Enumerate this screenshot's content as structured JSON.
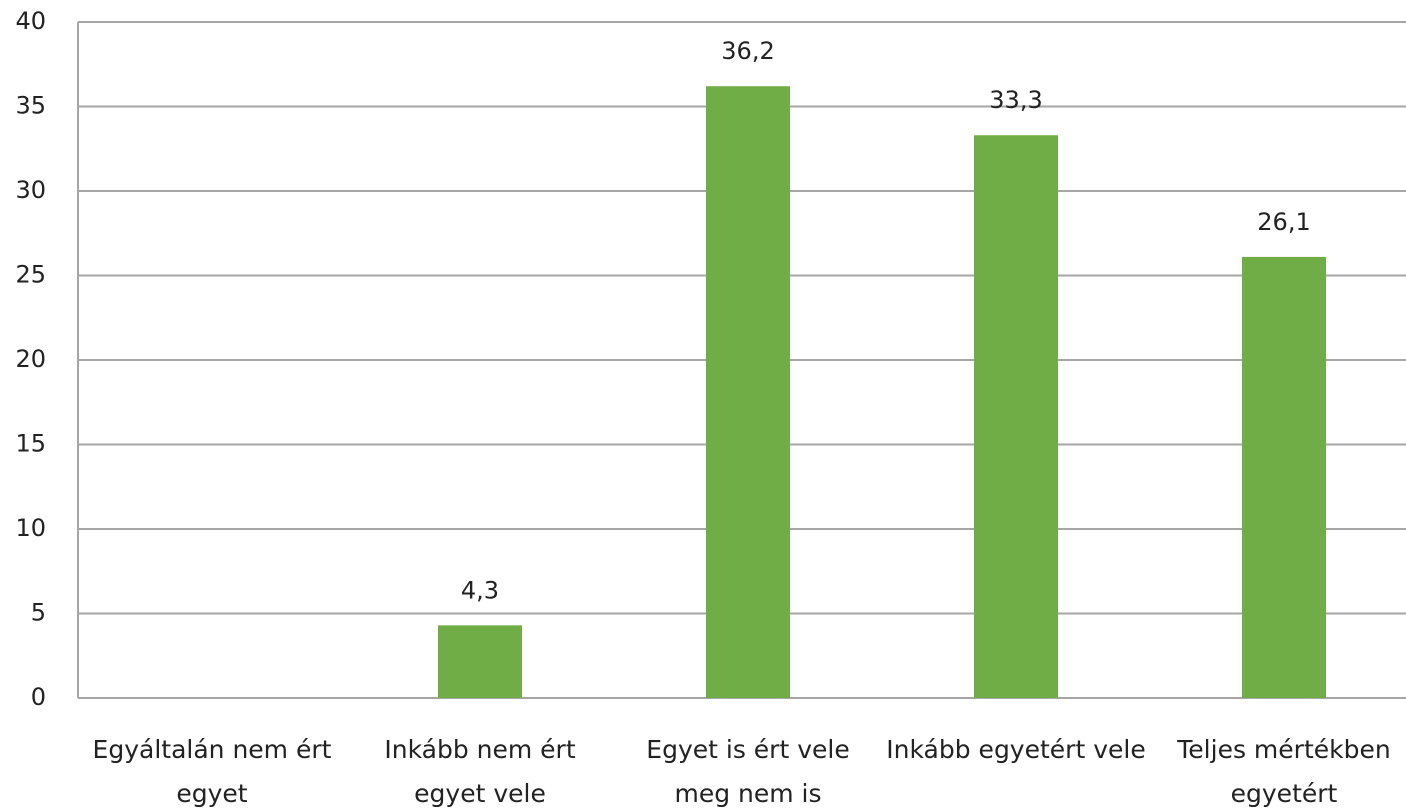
{
  "chart_data": {
    "type": "bar",
    "categories": [
      "Egyáltalán nem ért egyet",
      "Inkább nem ért egyet vele",
      "Egyet is ért vele meg nem is",
      "Inkább egyetért vele",
      "Teljes mértékben egyetért"
    ],
    "values": [
      null,
      4.3,
      36.2,
      33.3,
      26.1
    ],
    "value_labels": [
      null,
      "4,3",
      "36,2",
      "33,3",
      "26,1"
    ],
    "color": "#70ad47",
    "ylim": [
      0,
      40
    ],
    "yticks": [
      0,
      5,
      10,
      15,
      20,
      25,
      30,
      35,
      40
    ],
    "grid": true
  }
}
